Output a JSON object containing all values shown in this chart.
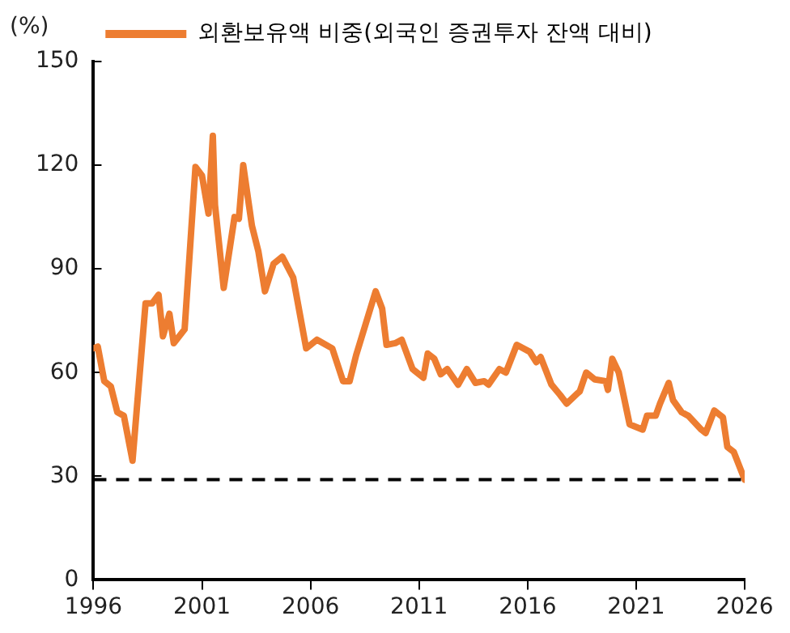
{
  "chart_data": {
    "type": "line",
    "ylabel": "(%)",
    "legend": "top",
    "x": [
      1996.0,
      1996.2,
      1996.5,
      1996.8,
      1997.1,
      1997.4,
      1997.8,
      1998.4,
      1998.7,
      1999.0,
      1999.2,
      1999.5,
      1999.7,
      2000.2,
      2000.7,
      2001.0,
      2001.3,
      2001.5,
      2001.6,
      2002.0,
      2002.5,
      2002.7,
      2002.9,
      2003.3,
      2003.6,
      2003.9,
      2004.3,
      2004.7,
      2005.2,
      2005.8,
      2006.3,
      2007.0,
      2007.5,
      2007.8,
      2008.1,
      2009.0,
      2009.3,
      2009.5,
      2009.9,
      2010.2,
      2010.7,
      2011.2,
      2011.4,
      2011.7,
      2012.0,
      2012.3,
      2012.8,
      2013.2,
      2013.6,
      2014.0,
      2014.2,
      2014.7,
      2015.0,
      2015.5,
      2016.1,
      2016.4,
      2016.6,
      2017.1,
      2017.5,
      2017.8,
      2018.3,
      2018.4,
      2018.7,
      2019.1,
      2019.6,
      2019.7,
      2019.9,
      2020.2,
      2020.7,
      2021.3,
      2021.5,
      2021.9,
      2022.1,
      2022.5,
      2022.7,
      2023.1,
      2023.4,
      2024.0,
      2024.2,
      2024.6,
      2025.0,
      2025.2,
      2025.5,
      2026.0
    ],
    "series": [
      {
        "name": "외환보유액 비중(외국인 증권투자 잔액 대비)",
        "color": "#ed7d31",
        "values": [
          67,
          67.5,
          57.5,
          56,
          48.5,
          47.5,
          34.5,
          80,
          80,
          82.5,
          70.5,
          77,
          68.5,
          72.5,
          119.5,
          117,
          106,
          128.5,
          108.5,
          84.5,
          105,
          104.5,
          120,
          102.5,
          95,
          83.5,
          91.5,
          93.5,
          87.5,
          67,
          69.5,
          67,
          57.5,
          57.5,
          65,
          83.5,
          78.5,
          68,
          68.5,
          69.5,
          61,
          58.5,
          65.5,
          64,
          59.5,
          61,
          56.5,
          61,
          57,
          57.5,
          56.5,
          61,
          60,
          68,
          66,
          63,
          64.5,
          56.5,
          53.5,
          51,
          54,
          54.5,
          60,
          58,
          57.5,
          55,
          64,
          60,
          45,
          43.5,
          47.5,
          47.5,
          51,
          57,
          52,
          48.5,
          47.5,
          43.5,
          42.5,
          49,
          47,
          38.5,
          37,
          29
        ]
      }
    ],
    "xlim": [
      1996,
      2026
    ],
    "xticks": [
      1996,
      2001,
      2006,
      2011,
      2016,
      2021,
      2026
    ],
    "ylim": [
      0,
      150
    ],
    "yticks": [
      0,
      30,
      60,
      90,
      120,
      150
    ],
    "grid": false,
    "ref_lines": [
      {
        "axis": "y",
        "value": 29,
        "color": "#000000",
        "line_style": "dashed"
      }
    ]
  }
}
